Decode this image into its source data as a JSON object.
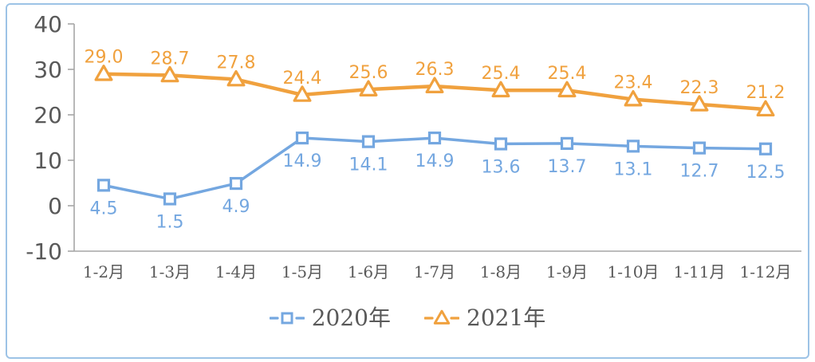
{
  "chart_data": {
    "type": "line",
    "title": "",
    "categories": [
      "1-2月",
      "1-3月",
      "1-4月",
      "1-5月",
      "1-6月",
      "1-7月",
      "1-8月",
      "1-9月",
      "1-10月",
      "1-11月",
      "1-12月"
    ],
    "series": [
      {
        "name": "2020年",
        "marker": "square",
        "color": "#74A7E0",
        "label_position": "below",
        "values": [
          4.5,
          1.5,
          4.9,
          14.9,
          14.1,
          14.9,
          13.6,
          13.7,
          13.1,
          12.7,
          12.5
        ]
      },
      {
        "name": "2021年",
        "marker": "triangle",
        "color": "#F0A13E",
        "label_position": "above",
        "values": [
          29.0,
          28.7,
          27.8,
          24.4,
          25.6,
          26.3,
          25.4,
          25.4,
          23.4,
          22.3,
          21.2
        ]
      }
    ],
    "ylim": [
      -10,
      40
    ],
    "yticks": [
      40,
      30,
      20,
      10,
      0,
      -10
    ],
    "grid": false,
    "data_labels": true,
    "legend_position": "bottom"
  },
  "colors": {
    "background": "#FFFFFF",
    "frame_border": "#9DC3E6",
    "axis_line": "#A6A6A6",
    "y_label": "#595959",
    "x_label": "#595959",
    "legend_text": "#595959"
  }
}
